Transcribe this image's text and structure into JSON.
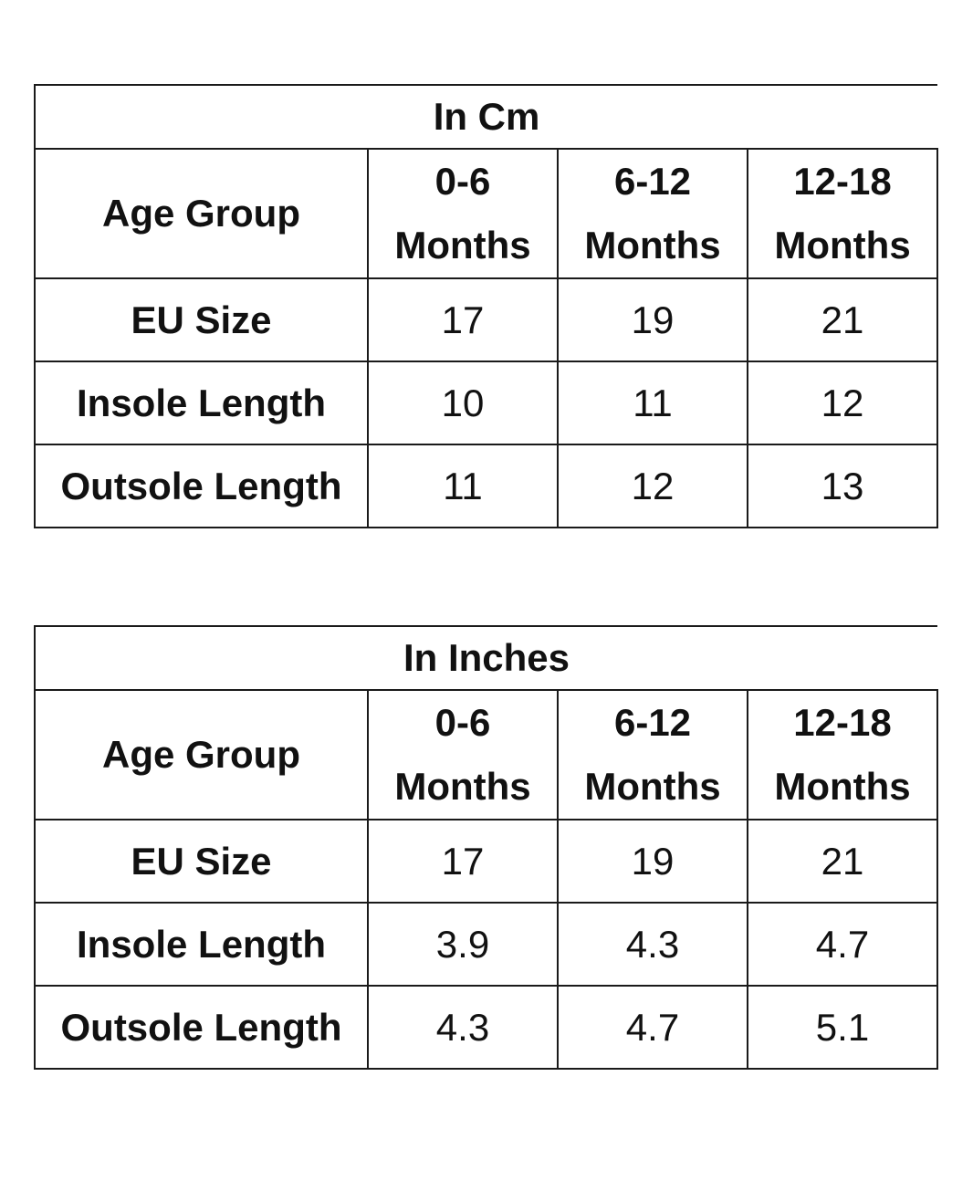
{
  "tables": [
    {
      "title": "In Cm",
      "age_group_label": "Age Group",
      "columns": [
        {
          "range": "0-6",
          "unit": "Months"
        },
        {
          "range": "6-12",
          "unit": "Months"
        },
        {
          "range": "12-18",
          "unit": "Months"
        }
      ],
      "rows": [
        {
          "label": "EU Size",
          "values": [
            "17",
            "19",
            "21"
          ]
        },
        {
          "label": "Insole Length",
          "values": [
            "10",
            "11",
            "12"
          ]
        },
        {
          "label": "Outsole Length",
          "values": [
            "11",
            "12",
            "13"
          ]
        }
      ]
    },
    {
      "title": "In Inches",
      "age_group_label": "Age Group",
      "columns": [
        {
          "range": "0-6",
          "unit": "Months"
        },
        {
          "range": "6-12",
          "unit": "Months"
        },
        {
          "range": "12-18",
          "unit": "Months"
        }
      ],
      "rows": [
        {
          "label": "EU Size",
          "values": [
            "17",
            "19",
            "21"
          ]
        },
        {
          "label": "Insole Length",
          "values": [
            "3.9",
            "4.3",
            "4.7"
          ]
        },
        {
          "label": "Outsole Length",
          "values": [
            "4.3",
            "4.7",
            "5.1"
          ]
        }
      ]
    }
  ]
}
